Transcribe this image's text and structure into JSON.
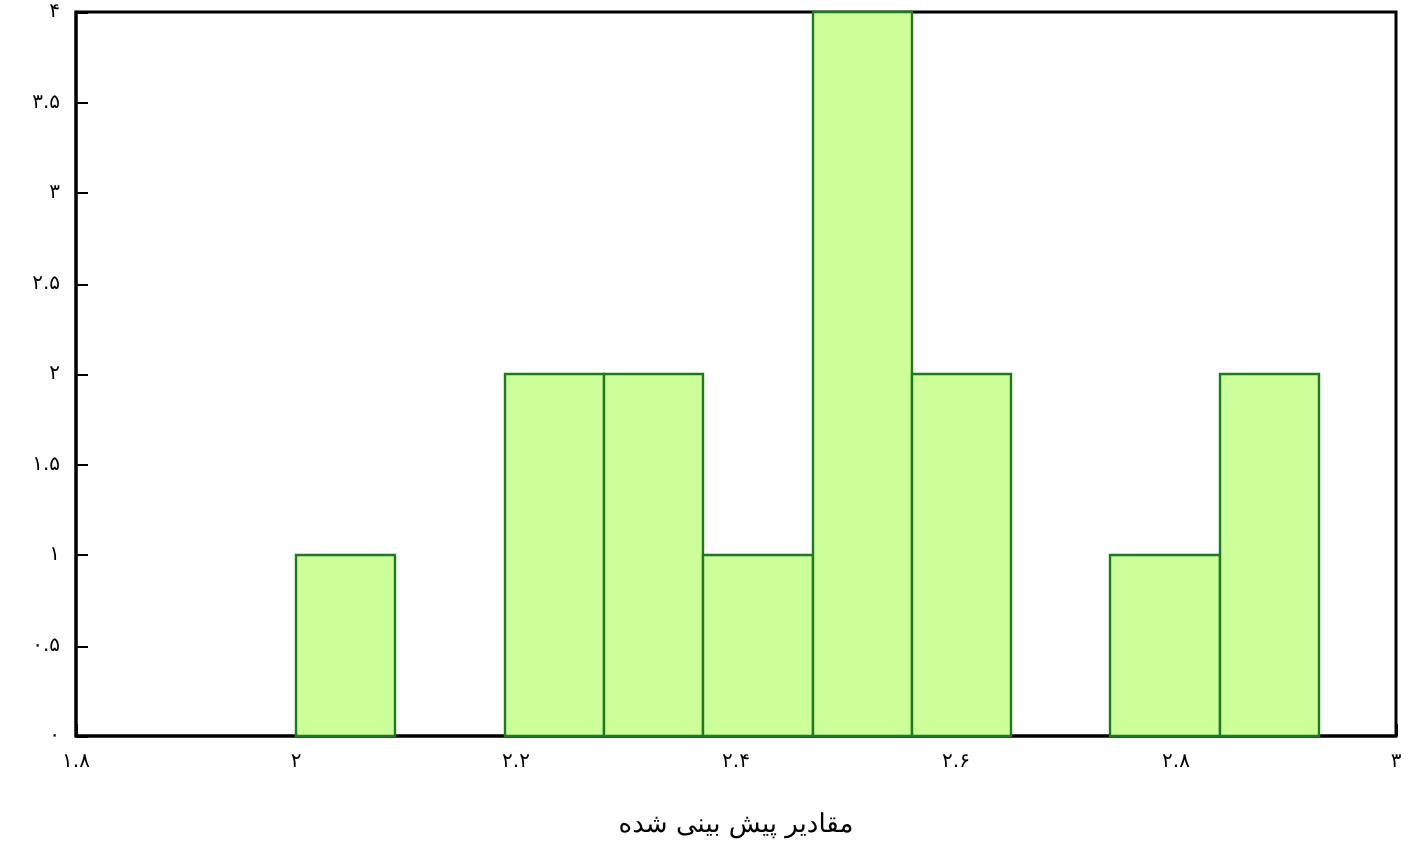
{
  "chart_data": {
    "type": "histogram",
    "xlabel": "مقادیر پیش بینی شده",
    "bins": [
      2.0,
      2.09,
      2.19,
      2.28,
      2.37,
      2.47,
      2.56,
      2.65,
      2.74,
      2.84,
      2.93
    ],
    "values": [
      1,
      0,
      2,
      2,
      1,
      4,
      2,
      0,
      1,
      2
    ],
    "color": "#ccff99",
    "xlim": [
      1.8,
      3
    ],
    "xticks": [
      {
        "value": 1.8,
        "label": "۱.۸"
      },
      {
        "value": 2,
        "label": "۲"
      },
      {
        "value": 2.2,
        "label": "۲.۲"
      },
      {
        "value": 2.4,
        "label": "۲.۴"
      },
      {
        "value": 2.6,
        "label": "۲.۶"
      },
      {
        "value": 2.8,
        "label": "۲.۸"
      },
      {
        "value": 3,
        "label": "۳"
      }
    ],
    "ylim": [
      0,
      4
    ],
    "yticks": [
      {
        "value": 0,
        "label": "۰"
      },
      {
        "value": 0.5,
        "label": "۰.۵"
      },
      {
        "value": 1,
        "label": "۱"
      },
      {
        "value": 1.5,
        "label": "۱.۵"
      },
      {
        "value": 2,
        "label": "۲"
      },
      {
        "value": 2.5,
        "label": "۲.۵"
      },
      {
        "value": 3,
        "label": "۳"
      },
      {
        "value": 3.5,
        "label": "۳.۵"
      },
      {
        "value": 4,
        "label": "۴"
      }
    ],
    "grid": false
  }
}
